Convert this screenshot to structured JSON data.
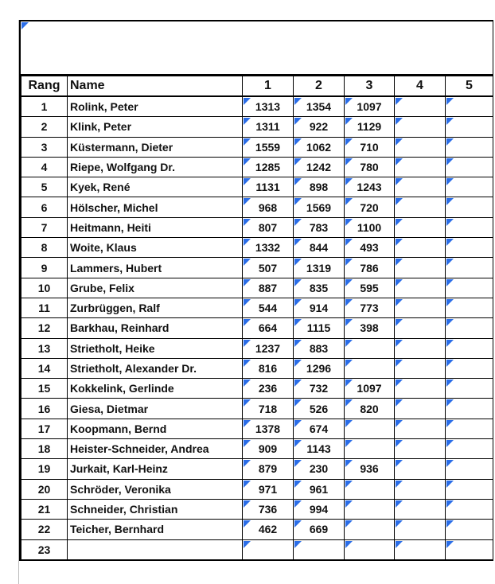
{
  "header": {
    "rank": "Rang",
    "name": "Name",
    "rounds": [
      "1",
      "2",
      "3",
      "4",
      "5"
    ]
  },
  "colors": {
    "comment_marker": "#2a6de8"
  },
  "rows": [
    {
      "rank": "1",
      "name": "Rolink, Peter",
      "scores": [
        "1313",
        "1354",
        "1097",
        "",
        ""
      ]
    },
    {
      "rank": "2",
      "name": "Klink, Peter",
      "scores": [
        "1311",
        "922",
        "1129",
        "",
        ""
      ]
    },
    {
      "rank": "3",
      "name": "Küstermann, Dieter",
      "scores": [
        "1559",
        "1062",
        "710",
        "",
        ""
      ]
    },
    {
      "rank": "4",
      "name": "Riepe, Wolfgang Dr.",
      "scores": [
        "1285",
        "1242",
        "780",
        "",
        ""
      ]
    },
    {
      "rank": "5",
      "name": "Kyek, René",
      "scores": [
        "1131",
        "898",
        "1243",
        "",
        ""
      ]
    },
    {
      "rank": "6",
      "name": "Hölscher, Michel",
      "scores": [
        "968",
        "1569",
        "720",
        "",
        ""
      ]
    },
    {
      "rank": "7",
      "name": "Heitmann, Heiti",
      "scores": [
        "807",
        "783",
        "1100",
        "",
        ""
      ]
    },
    {
      "rank": "8",
      "name": "Woite, Klaus",
      "scores": [
        "1332",
        "844",
        "493",
        "",
        ""
      ]
    },
    {
      "rank": "9",
      "name": "Lammers, Hubert",
      "scores": [
        "507",
        "1319",
        "786",
        "",
        ""
      ]
    },
    {
      "rank": "10",
      "name": "Grube, Felix",
      "scores": [
        "887",
        "835",
        "595",
        "",
        ""
      ]
    },
    {
      "rank": "11",
      "name": "Zurbrüggen, Ralf",
      "scores": [
        "544",
        "914",
        "773",
        "",
        ""
      ]
    },
    {
      "rank": "12",
      "name": "Barkhau, Reinhard",
      "scores": [
        "664",
        "1115",
        "398",
        "",
        ""
      ]
    },
    {
      "rank": "13",
      "name": "Strietholt, Heike",
      "scores": [
        "1237",
        "883",
        "",
        "",
        ""
      ]
    },
    {
      "rank": "14",
      "name": "Strietholt, Alexander Dr.",
      "scores": [
        "816",
        "1296",
        "",
        "",
        ""
      ]
    },
    {
      "rank": "15",
      "name": "Kokkelink, Gerlinde",
      "scores": [
        "236",
        "732",
        "1097",
        "",
        ""
      ]
    },
    {
      "rank": "16",
      "name": "Giesa, Dietmar",
      "scores": [
        "718",
        "526",
        "820",
        "",
        ""
      ]
    },
    {
      "rank": "17",
      "name": "Koopmann, Bernd",
      "scores": [
        "1378",
        "674",
        "",
        "",
        ""
      ]
    },
    {
      "rank": "18",
      "name": "Heister-Schneider, Andrea",
      "scores": [
        "909",
        "1143",
        "",
        "",
        ""
      ]
    },
    {
      "rank": "19",
      "name": "Jurkait, Karl-Heinz",
      "scores": [
        "879",
        "230",
        "936",
        "",
        ""
      ]
    },
    {
      "rank": "20",
      "name": "Schröder, Veronika",
      "scores": [
        "971",
        "961",
        "",
        "",
        ""
      ]
    },
    {
      "rank": "21",
      "name": "Schneider, Christian",
      "scores": [
        "736",
        "994",
        "",
        "",
        ""
      ]
    },
    {
      "rank": "22",
      "name": "Teicher, Bernhard",
      "scores": [
        "462",
        "669",
        "",
        "",
        ""
      ]
    },
    {
      "rank": "23",
      "name": "",
      "scores": [
        "",
        "",
        "",
        "",
        ""
      ]
    }
  ]
}
